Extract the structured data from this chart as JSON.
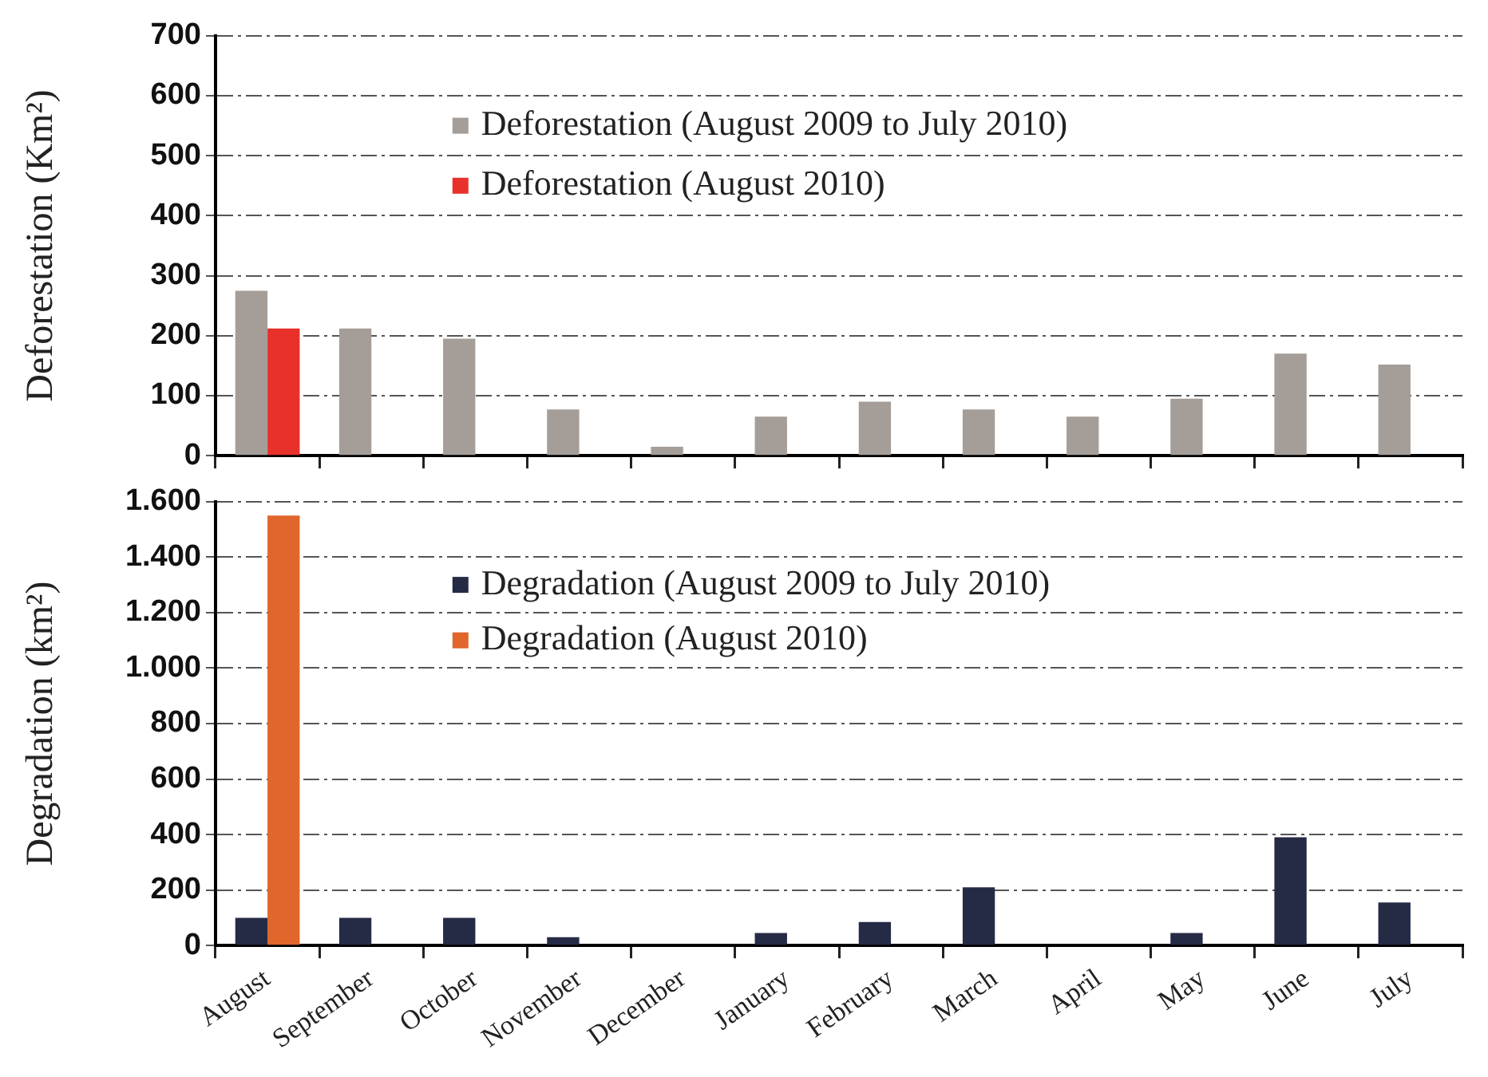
{
  "chart_data": [
    {
      "type": "bar",
      "ylabel": "Deforestation (Km²)",
      "categories": [
        null,
        null,
        null,
        null,
        null,
        null,
        null,
        null,
        null,
        null,
        null,
        null
      ],
      "series": [
        {
          "name": "Deforestation (August 2009 to July 2010)",
          "color": "#a59d98",
          "values": [
            275,
            212,
            195,
            77,
            15,
            65,
            90,
            77,
            65,
            95,
            170,
            152
          ]
        },
        {
          "name": "Deforestation (August 2010)",
          "color": "#e8312b",
          "values": [
            212,
            null,
            null,
            null,
            null,
            null,
            null,
            null,
            null,
            null,
            null,
            null
          ]
        }
      ],
      "ylim": [
        0,
        700
      ],
      "yticks": [
        0,
        100,
        200,
        300,
        400,
        500,
        600,
        700
      ],
      "grid": "y",
      "legend": "top",
      "tick_labels": "y"
    },
    {
      "type": "bar",
      "ylabel": "Degradation (km²)",
      "categories": [
        "August",
        "September",
        "October",
        "November",
        "December",
        "January",
        "February",
        "March",
        "April",
        "May",
        "June",
        "July"
      ],
      "series": [
        {
          "name": "Degradation (August 2009 to July 2010)",
          "color": "#252a45",
          "values": [
            100,
            100,
            100,
            30,
            0,
            45,
            85,
            210,
            0,
            45,
            390,
            155
          ]
        },
        {
          "name": "Degradation (August 2010)",
          "color": "#e0662b",
          "values": [
            1550,
            null,
            null,
            null,
            null,
            null,
            null,
            null,
            null,
            null,
            null,
            null
          ]
        }
      ],
      "ylim": [
        0,
        1600
      ],
      "yticks": [
        0,
        200,
        400,
        600,
        800,
        {
          "value": 1000,
          "label": "1.000"
        },
        {
          "value": 1200,
          "label": "1.200"
        },
        {
          "value": 1400,
          "label": "1.400"
        },
        {
          "value": 1600,
          "label": "1.600"
        }
      ],
      "grid": "y",
      "legend": "top"
    }
  ]
}
